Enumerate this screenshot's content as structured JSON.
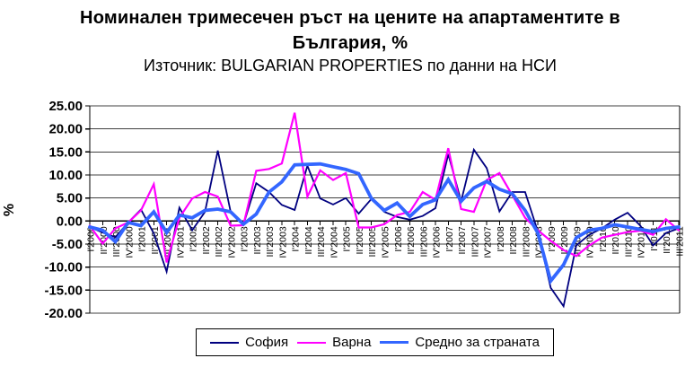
{
  "title_line1": "Номинален тримесечен ръст на цените на апартаментите в",
  "title_line2": "България, %",
  "subtitle": "Източник: BULGARIAN PROPERTIES по данни на НСИ",
  "y_axis_title": "%",
  "chart_data": {
    "type": "line",
    "title": "Номинален тримесечен ръст на цените на апартаментите в България, %",
    "subtitle": "Източник: BULGARIAN PROPERTIES по данни на НСИ",
    "ylabel": "%",
    "ylim": [
      -20,
      25
    ],
    "ytick_step": 5,
    "ytick_format_decimals": 2,
    "grid": true,
    "legend_position": "bottom",
    "axis_color": "#000000",
    "grid_color": "#404040",
    "categories": [
      "I'2000",
      "II'2000",
      "III'2000",
      "IV'2000",
      "I'2001",
      "II'2001",
      "III'2001",
      "IV'2001",
      "I'2002",
      "II'2002",
      "III'2002",
      "IV'2002",
      "I'2003",
      "II'2003",
      "III'2003",
      "IV'2003",
      "I'2004",
      "II'2004",
      "III'2004",
      "IV'2004",
      "I'2005",
      "II'2005",
      "III'2005",
      "IV'2005",
      "I'2006",
      "II'2006",
      "III'2006",
      "IV'2006",
      "I'2007",
      "II'2007",
      "III'2007",
      "IV'2007",
      "I'2008",
      "II'2008",
      "III'2008",
      "IV'2008",
      "I'2009",
      "II'2009",
      "III'2009",
      "IV'2009",
      "I'2010",
      "II'2010",
      "III'2010",
      "IV'2010",
      "I'2011",
      "II'2011",
      "III'2011"
    ],
    "series": [
      {
        "name": "София",
        "color": "#000080",
        "stroke_width": 1.8,
        "values": [
          -1.3,
          -2.5,
          -3.5,
          -0.3,
          2.5,
          -2.7,
          -11.0,
          2.9,
          -2.0,
          2.0,
          15.3,
          2.0,
          -0.8,
          8.2,
          6.3,
          3.5,
          2.4,
          12.0,
          4.9,
          3.6,
          5.0,
          1.6,
          4.8,
          2.0,
          0.9,
          0.3,
          1.1,
          2.8,
          14.5,
          4.3,
          15.5,
          11.5,
          2.1,
          6.3,
          6.3,
          -2.3,
          -14.5,
          -18.5,
          -5.3,
          -3.0,
          -1.6,
          0.3,
          1.8,
          -1.0,
          -5.3,
          -2.6,
          -1.6
        ]
      },
      {
        "name": "Варна",
        "color": "#FF00FF",
        "stroke_width": 2.2,
        "values": [
          -1.0,
          -4.9,
          -1.6,
          -0.3,
          2.3,
          8.0,
          -9.0,
          0.7,
          4.9,
          6.3,
          5.3,
          -1.0,
          -0.9,
          10.9,
          11.3,
          12.5,
          23.5,
          5.3,
          11.0,
          8.9,
          10.4,
          -1.4,
          -1.4,
          -0.7,
          1.3,
          2.0,
          6.3,
          4.6,
          15.8,
          2.6,
          2.0,
          8.9,
          10.4,
          5.6,
          0.7,
          -2.0,
          -4.3,
          -6.3,
          -7.6,
          -5.3,
          -3.6,
          -3.0,
          -2.4,
          -2.1,
          -3.0,
          0.4,
          -2.0
        ]
      },
      {
        "name": "Средно за страната",
        "color": "#3366FF",
        "stroke_width": 3.8,
        "values": [
          -1.3,
          -2.0,
          -4.5,
          -0.3,
          -1.0,
          2.0,
          -2.5,
          1.3,
          0.7,
          2.3,
          2.6,
          2.0,
          -0.7,
          1.5,
          6.3,
          8.5,
          12.2,
          12.3,
          12.4,
          11.8,
          11.2,
          10.3,
          4.9,
          2.3,
          3.9,
          1.0,
          3.6,
          4.6,
          9.0,
          4.3,
          7.2,
          8.6,
          6.9,
          5.9,
          2.3,
          -2.6,
          -13.0,
          -9.5,
          -3.6,
          -2.0,
          -1.6,
          -0.8,
          -1.3,
          -1.8,
          -2.3,
          -1.6,
          -1.3
        ]
      }
    ]
  }
}
